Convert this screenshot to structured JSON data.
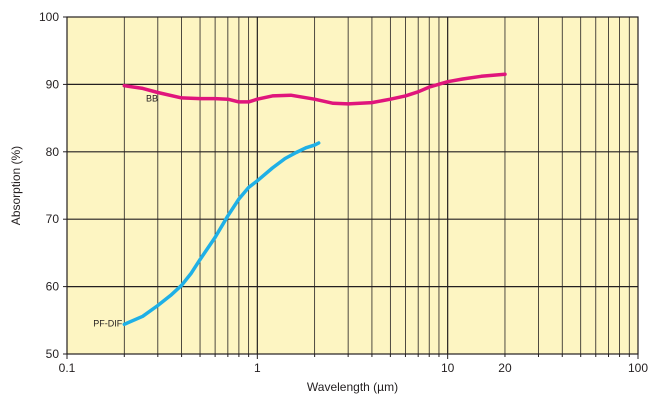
{
  "chart_data": {
    "type": "line",
    "title": "",
    "xlabel": "Wavelength (µm)",
    "ylabel": "Absorption (%)",
    "x_scale": "log",
    "xlim": [
      0.1,
      100
    ],
    "ylim": [
      50,
      100
    ],
    "grid": true,
    "x_tick_labels": [
      "0.1",
      "1",
      "10",
      "20",
      "100"
    ],
    "x_tick_values": [
      0.1,
      1,
      10,
      20,
      100
    ],
    "y_tick_labels": [
      "50",
      "60",
      "70",
      "80",
      "90",
      "100"
    ],
    "y_tick_values": [
      50,
      60,
      70,
      80,
      90,
      100
    ],
    "colors": {
      "plot_bg": "#fdf5c2",
      "grid": "#231f20",
      "BB": "#e0157c",
      "PF-DIF": "#1fb0e6"
    },
    "series": [
      {
        "name": "BB",
        "x": [
          0.2,
          0.25,
          0.3,
          0.4,
          0.5,
          0.6,
          0.7,
          0.8,
          0.9,
          1.0,
          1.2,
          1.5,
          2.0,
          2.5,
          3.0,
          4.0,
          5.0,
          6.0,
          7.0,
          8.0,
          10.0,
          12.0,
          15.0,
          20.0
        ],
        "y": [
          89.8,
          89.4,
          88.8,
          88.0,
          87.9,
          87.9,
          87.8,
          87.4,
          87.4,
          87.8,
          88.3,
          88.4,
          87.8,
          87.2,
          87.1,
          87.3,
          87.8,
          88.3,
          88.9,
          89.6,
          90.4,
          90.8,
          91.2,
          91.5
        ]
      },
      {
        "name": "PF-DIF",
        "x": [
          0.2,
          0.25,
          0.3,
          0.35,
          0.4,
          0.45,
          0.5,
          0.6,
          0.7,
          0.8,
          0.9,
          1.0,
          1.2,
          1.4,
          1.6,
          1.8,
          2.0,
          2.1
        ],
        "y": [
          54.4,
          55.6,
          57.2,
          58.7,
          60.2,
          62.0,
          64.0,
          67.3,
          70.5,
          73.0,
          74.7,
          75.7,
          77.6,
          79.0,
          79.9,
          80.6,
          81.0,
          81.3
        ]
      }
    ]
  }
}
